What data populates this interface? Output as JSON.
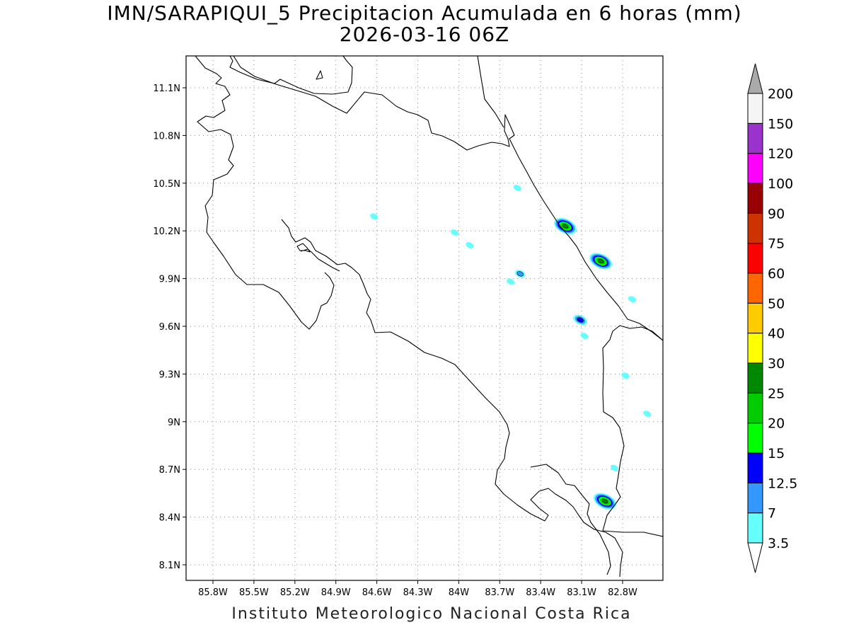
{
  "title": {
    "line1": "IMN/SARAPIQUI_5 Precipitacion Acumulada en 6 horas (mm)",
    "line2": "2026-03-16 06Z"
  },
  "footer": "Instituto Meteorologico Nacional Costa Rica",
  "map": {
    "lon_range": [
      -86.07,
      -82.6
    ],
    "lat_range": [
      8.0,
      11.3
    ],
    "x_ticks": [
      {
        "lon": -85.8,
        "label": "85.8W"
      },
      {
        "lon": -85.5,
        "label": "85.5W"
      },
      {
        "lon": -85.2,
        "label": "85.2W"
      },
      {
        "lon": -84.9,
        "label": "84.9W"
      },
      {
        "lon": -84.6,
        "label": "84.6W"
      },
      {
        "lon": -84.3,
        "label": "84.3W"
      },
      {
        "lon": -84.0,
        "label": "84W"
      },
      {
        "lon": -83.7,
        "label": "83.7W"
      },
      {
        "lon": -83.4,
        "label": "83.4W"
      },
      {
        "lon": -83.1,
        "label": "83.1W"
      },
      {
        "lon": -82.8,
        "label": "82.8W"
      }
    ],
    "y_ticks": [
      {
        "lat": 11.1,
        "label": "11.1N"
      },
      {
        "lat": 10.8,
        "label": "10.8N"
      },
      {
        "lat": 10.5,
        "label": "10.5N"
      },
      {
        "lat": 10.2,
        "label": "10.2N"
      },
      {
        "lat": 9.9,
        "label": "9.9N"
      },
      {
        "lat": 9.6,
        "label": "9.6N"
      },
      {
        "lat": 9.3,
        "label": "9.3N"
      },
      {
        "lat": 9.0,
        "label": "9N"
      },
      {
        "lat": 8.7,
        "label": "8.7N"
      },
      {
        "lat": 8.4,
        "label": "8.4N"
      },
      {
        "lat": 8.1,
        "label": "8.1N"
      }
    ],
    "grid": "dotted",
    "precip_cells": [
      {
        "lon": -83.22,
        "lat": 10.23,
        "max_mm": 25
      },
      {
        "lon": -82.96,
        "lat": 10.01,
        "max_mm": 25
      },
      {
        "lon": -82.93,
        "lat": 8.5,
        "max_mm": 25
      },
      {
        "lon": -83.11,
        "lat": 9.64,
        "max_mm": 12.5
      },
      {
        "lon": -83.55,
        "lat": 9.93,
        "max_mm": 7
      },
      {
        "lon": -83.62,
        "lat": 9.88,
        "max_mm": 3.5
      },
      {
        "lon": -84.03,
        "lat": 10.19,
        "max_mm": 3.5
      },
      {
        "lon": -83.92,
        "lat": 10.11,
        "max_mm": 3.5
      },
      {
        "lon": -84.62,
        "lat": 10.29,
        "max_mm": 3.5
      },
      {
        "lon": -83.57,
        "lat": 10.47,
        "max_mm": 3.5
      },
      {
        "lon": -82.73,
        "lat": 9.77,
        "max_mm": 3.5
      },
      {
        "lon": -82.78,
        "lat": 9.29,
        "max_mm": 3.5
      },
      {
        "lon": -82.86,
        "lat": 8.71,
        "max_mm": 3.5
      },
      {
        "lon": -83.08,
        "lat": 9.54,
        "max_mm": 3.5
      },
      {
        "lon": -82.62,
        "lat": 9.05,
        "max_mm": 3.5
      }
    ]
  },
  "colorbar": {
    "levels": [
      "3.5",
      "7",
      "12.5",
      "15",
      "20",
      "25",
      "30",
      "40",
      "50",
      "60",
      "75",
      "90",
      "100",
      "120",
      "150",
      "200"
    ],
    "colors": [
      "#66ffff",
      "#3399ff",
      "#0000ff",
      "#00ff00",
      "#00cc00",
      "#008800",
      "#ffff00",
      "#ffcc00",
      "#ff6600",
      "#ff0000",
      "#cc3300",
      "#990000",
      "#ff00ff",
      "#9933cc",
      "#f5f5f5",
      "#aaaaaa"
    ],
    "top_arrow_color": "#aaaaaa",
    "bottom_arrow_color": "#ffffff"
  }
}
